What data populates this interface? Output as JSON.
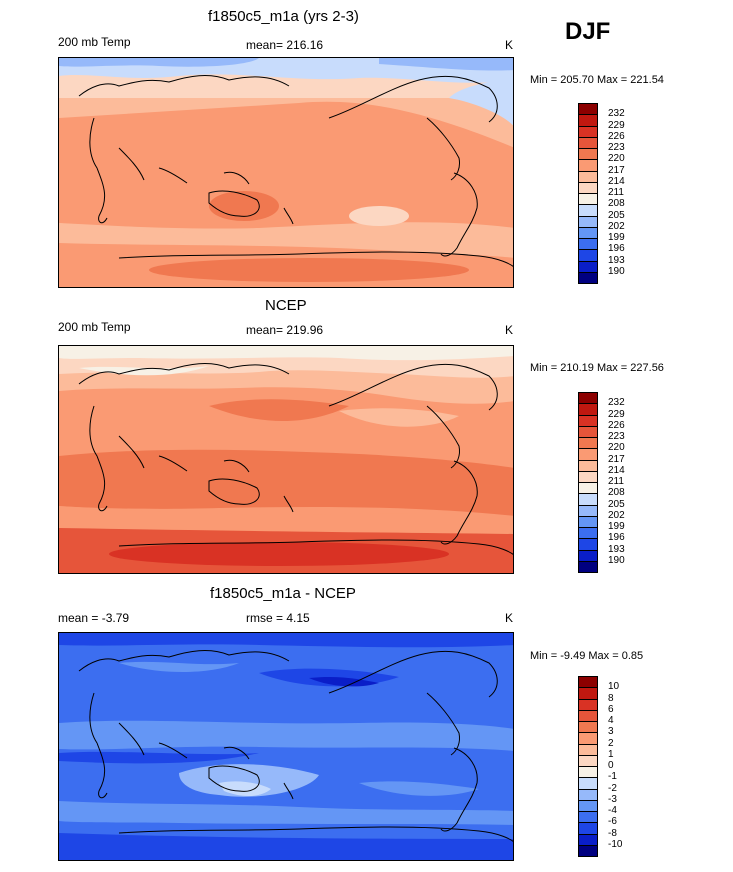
{
  "season": "DJF",
  "colors": {
    "temp_scale": [
      "#000080",
      "#0a1ec8",
      "#1e46e6",
      "#3c6ef0",
      "#6496f5",
      "#96b9fa",
      "#c8dcfc",
      "#f7f1e6",
      "#fcd7c2",
      "#fcbb9a",
      "#fa9a73",
      "#f07850",
      "#e6553a",
      "#d93224",
      "#c01810",
      "#8c0000"
    ],
    "diff_scale": [
      "#000080",
      "#0a1ec8",
      "#1e46e6",
      "#3c6ef0",
      "#6496f5",
      "#96b9fa",
      "#c8dcfc",
      "#f7f1e6",
      "#fcd7c2",
      "#fcbb9a",
      "#fa9a73",
      "#f07850",
      "#e6553a",
      "#d93224",
      "#c01810",
      "#8c0000"
    ]
  },
  "panels": [
    {
      "title": "f1850c5_m1a (yrs 2-3)",
      "left_label": "200 mb Temp",
      "center_label": "mean= 216.16",
      "units": "K",
      "minmax": "Min = 205.70 Max = 221.54",
      "legend_labels": [
        "232",
        "229",
        "226",
        "223",
        "220",
        "217",
        "214",
        "211",
        "208",
        "205",
        "202",
        "199",
        "196",
        "193",
        "190"
      ]
    },
    {
      "title": "NCEP",
      "left_label": "200 mb Temp",
      "center_label": "mean= 219.96",
      "units": "K",
      "minmax": "Min = 210.19 Max = 227.56",
      "legend_labels": [
        "232",
        "229",
        "226",
        "223",
        "220",
        "217",
        "214",
        "211",
        "208",
        "205",
        "202",
        "199",
        "196",
        "193",
        "190"
      ]
    },
    {
      "title": "f1850c5_m1a - NCEP",
      "left_label": "mean =  -3.79",
      "center_label": "rmse =    4.15",
      "units": "K",
      "minmax": "Min =  -9.49 Max =   0.85",
      "legend_labels": [
        "10",
        "8",
        "6",
        "4",
        "3",
        "2",
        "1",
        "0",
        "-1",
        "-2",
        "-3",
        "-4",
        "-6",
        "-8",
        "-10"
      ]
    }
  ]
}
